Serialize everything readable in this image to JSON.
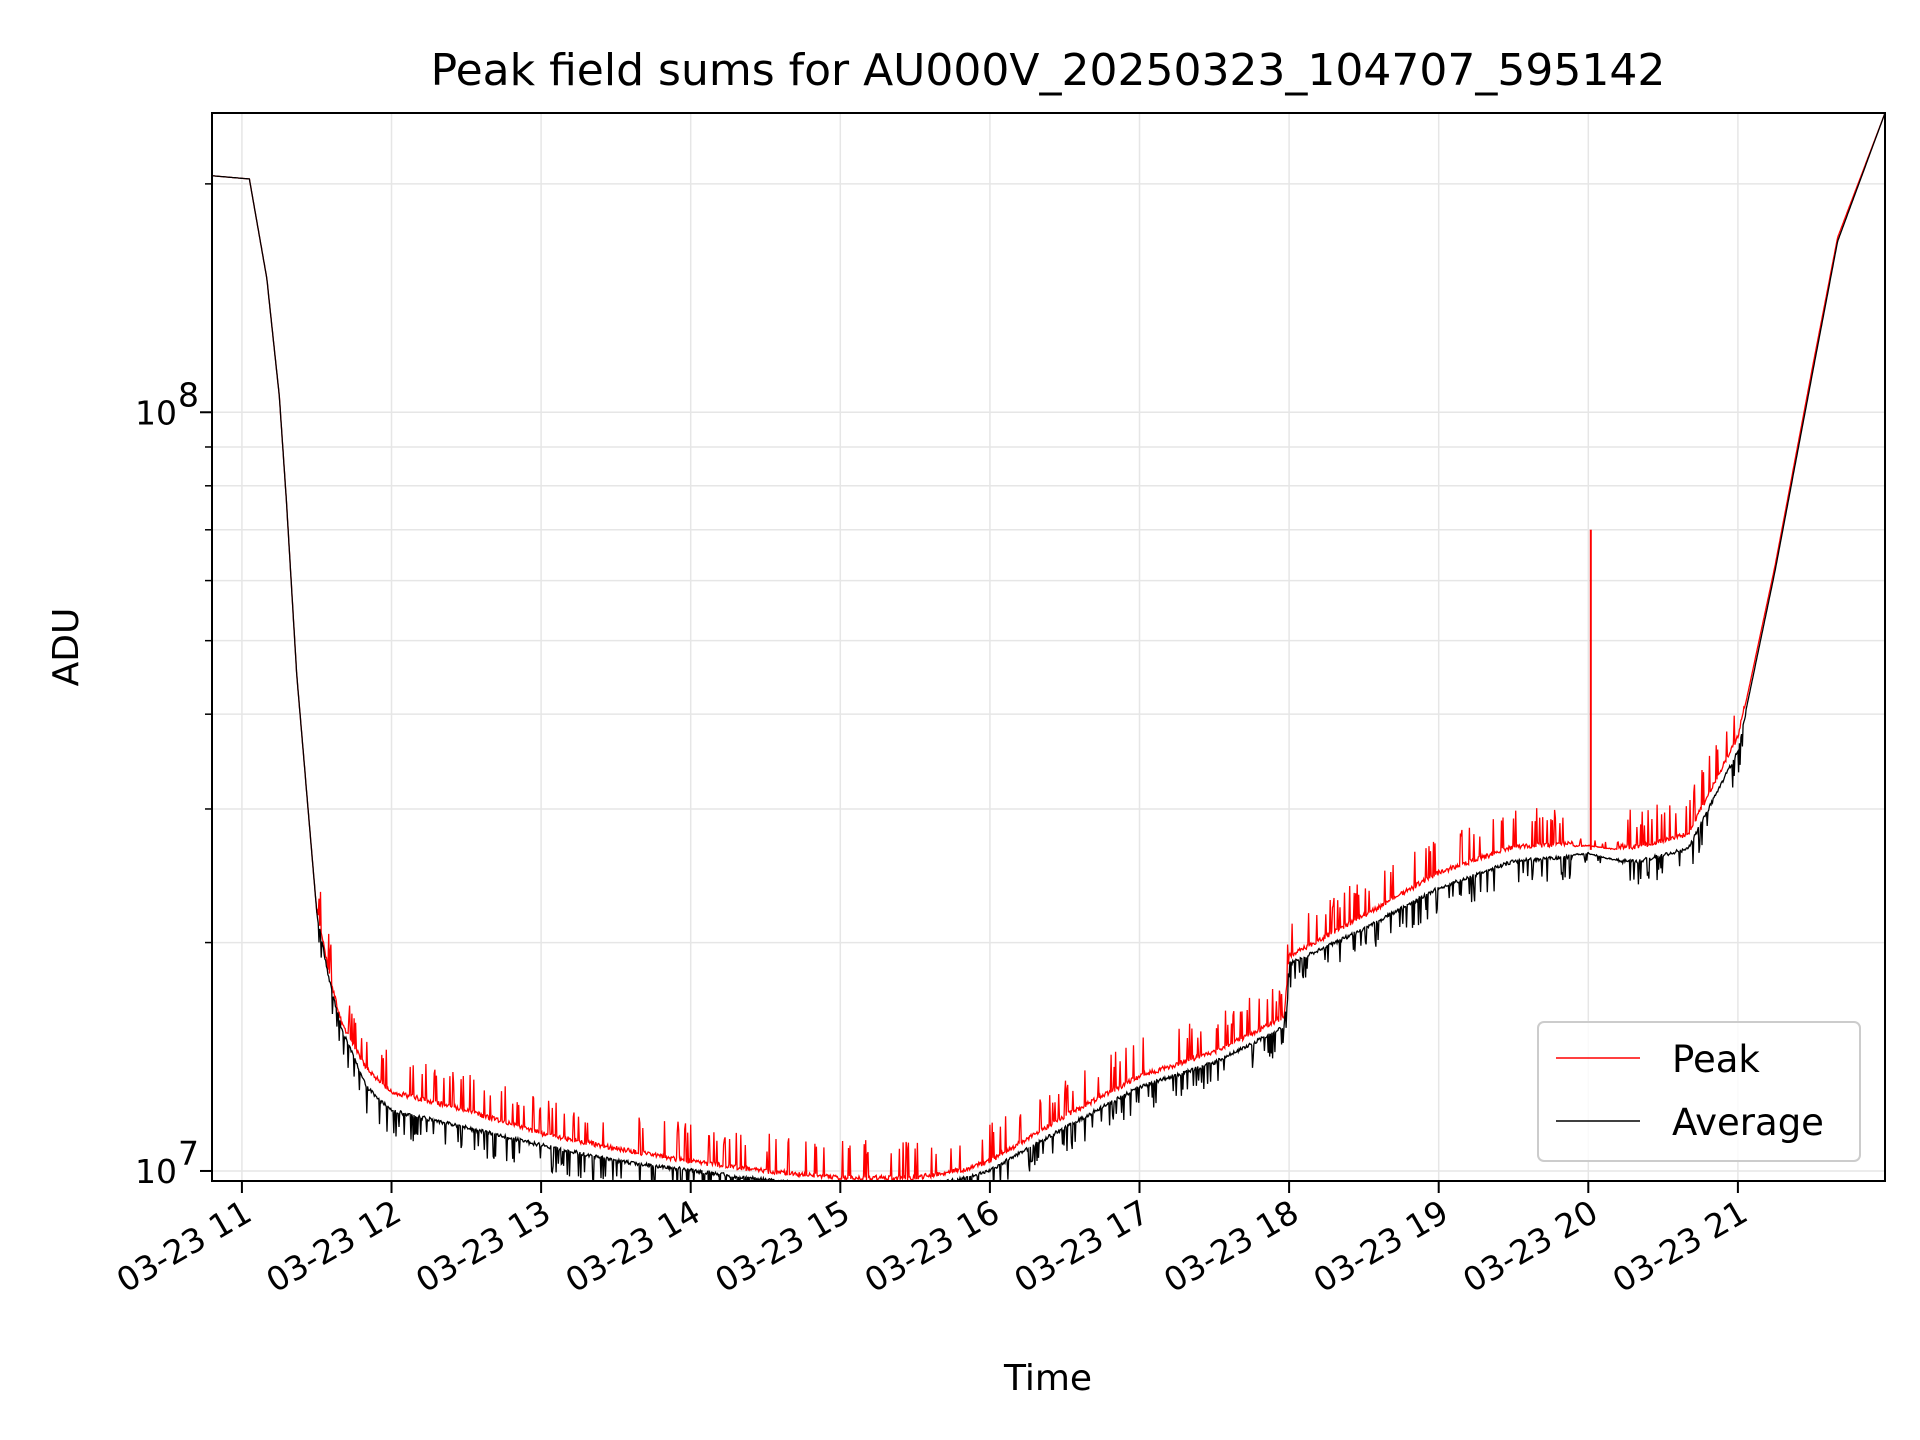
{
  "chart_data": {
    "type": "line",
    "title": "Peak field sums for AU000V_20250323_104707_595142",
    "xlabel": "Time",
    "ylabel": "ADU",
    "y_scale": "log",
    "ylim": [
      9700000,
      248000000
    ],
    "xlim": [
      "03-23 10:48",
      "03-23 21:59"
    ],
    "grid": "both",
    "legend_position": "lower-right",
    "x_tick_labels": [
      "03-23 11",
      "03-23 12",
      "03-23 13",
      "03-23 14",
      "03-23 15",
      "03-23 16",
      "03-23 17",
      "03-23 18",
      "03-23 19",
      "03-23 20",
      "03-23 21"
    ],
    "y_tick_labels": [
      {
        "value": 10000000,
        "base": "10",
        "exp": "7"
      },
      {
        "value": 100000000,
        "base": "10",
        "exp": "8"
      }
    ],
    "series": [
      {
        "name": "Peak",
        "color": "#ff0000",
        "x": [
          "03-23 10:48",
          "03-23 11:03",
          "03-23 11:10",
          "03-23 11:15",
          "03-23 11:18",
          "03-23 11:22",
          "03-23 11:30",
          "03-23 11:35",
          "03-23 11:40",
          "03-23 11:50",
          "03-23 12:00",
          "03-23 12:30",
          "03-23 13:00",
          "03-23 13:30",
          "03-23 14:00",
          "03-23 14:30",
          "03-23 15:00",
          "03-23 15:30",
          "03-23 15:50",
          "03-23 16:00",
          "03-23 16:30",
          "03-23 17:00",
          "03-23 17:30",
          "03-23 17:58",
          "03-23 18:00",
          "03-23 18:30",
          "03-23 19:00",
          "03-23 19:30",
          "03-23 20:00",
          "03-23 20:10",
          "03-23 20:20",
          "03-23 20:40",
          "03-23 21:00",
          "03-23 21:15",
          "03-23 21:30",
          "03-23 21:40",
          "03-23 21:59"
        ],
        "y": [
          205000000,
          203000000,
          150000000,
          105000000,
          75000000,
          45000000,
          22000000,
          18000000,
          15500000,
          13500000,
          12600000,
          11900000,
          11100000,
          10600000,
          10200000,
          9900000,
          9700000,
          9700000,
          9950000,
          10200000,
          11700000,
          13200000,
          14200000,
          15800000,
          19000000,
          21500000,
          24500000,
          26500000,
          26800000,
          26500000,
          26500000,
          27500000,
          37000000,
          63000000,
          115000000,
          170000000,
          248000000
        ]
      },
      {
        "name": "Average",
        "color": "#000000",
        "x": [
          "03-23 10:48",
          "03-23 11:03",
          "03-23 11:10",
          "03-23 11:15",
          "03-23 11:18",
          "03-23 11:22",
          "03-23 11:30",
          "03-23 11:35",
          "03-23 11:40",
          "03-23 11:50",
          "03-23 12:00",
          "03-23 12:30",
          "03-23 13:00",
          "03-23 13:30",
          "03-23 14:00",
          "03-23 14:30",
          "03-23 15:00",
          "03-23 15:30",
          "03-23 15:50",
          "03-23 16:00",
          "03-23 16:30",
          "03-23 17:00",
          "03-23 17:30",
          "03-23 17:58",
          "03-23 18:00",
          "03-23 18:30",
          "03-23 19:00",
          "03-23 19:30",
          "03-23 20:00",
          "03-23 20:10",
          "03-23 20:20",
          "03-23 20:40",
          "03-23 21:00",
          "03-23 21:15",
          "03-23 21:30",
          "03-23 21:40",
          "03-23 21:59"
        ],
        "y": [
          205000000,
          203000000,
          150000000,
          105000000,
          75000000,
          45000000,
          22000000,
          18000000,
          15500000,
          13000000,
          12100000,
          11500000,
          10900000,
          10400000,
          10100000,
          9800000,
          9600000,
          9600000,
          9850000,
          10100000,
          11500000,
          13000000,
          14000000,
          15600000,
          18900000,
          21000000,
          23800000,
          25800000,
          26300000,
          25800000,
          25800000,
          26800000,
          36000000,
          62000000,
          113000000,
          168000000,
          248000000
        ]
      }
    ],
    "annotations": [
      {
        "series": "Peak",
        "type": "spike",
        "x": "03-23 20:01",
        "y": 70000000
      }
    ]
  }
}
